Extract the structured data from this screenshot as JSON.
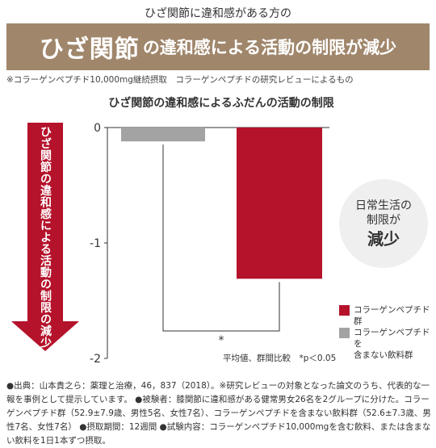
{
  "header": {
    "top_caption": "ひざ関節に違和感がある方の",
    "banner_big": "ひざ関節",
    "banner_rest": "の違和感による活動の制限が減少",
    "note": "※コラーゲンペプチド10,000mg継続摂取　コラーゲンペプチドの研究レビューによるもの"
  },
  "arrow": {
    "text": "ひざ関節の違和感による活動の制限の減少",
    "color": "#b5122b"
  },
  "bubble": {
    "line1": "日常生活の",
    "line2": "制限が",
    "line3": "減少"
  },
  "colors": {
    "banner": "#a0866b",
    "collagen": "#b5122b",
    "placebo": "#a3a3a3",
    "axis": "#333333"
  },
  "chart_data": {
    "type": "bar",
    "title": "ひざ関節の違和感によるふだんの活動の制限",
    "categories": [
      "コラーゲンペプチドを含まない飲料群",
      "コラーゲンペプチド群"
    ],
    "values": [
      -0.12,
      -1.31
    ],
    "ylim": [
      -2,
      0
    ],
    "yticks": [
      0,
      -1,
      -2
    ],
    "ytick_labels": [
      "0",
      "-1",
      "-2"
    ],
    "significance": "*",
    "legend": [
      {
        "label": "コラーゲンペプチド群",
        "color": "#b5122b"
      },
      {
        "label": "コラーゲンペプチドを\n含まない飲料群",
        "color": "#a3a3a3"
      }
    ],
    "legend_position": "bottom-right",
    "footnote": "平均値、群間比較　*p＜0.05",
    "grid": false
  },
  "sources": {
    "p1": "●出典：山本貴之ら：薬理と治療，46，837（2018）。※研究レビューの対象となった論文のうち、代表的な一報を事例として提示しています。 ●被験者：膝関節に違和感がある健常男女26名を2グループに分けた。コラーゲンペプチド群（52.9±7.9歳、男性5名、女性7名）、コラーゲンペプチドを含まない飲料群（52.6±7.3歳、男性7名、女性7名） ●摂取期間：12週間 ●試験内容：コラーゲンペプチド10,000mgを含む飲料、または含まない飲料を1日1本ずつ摂取。"
  }
}
